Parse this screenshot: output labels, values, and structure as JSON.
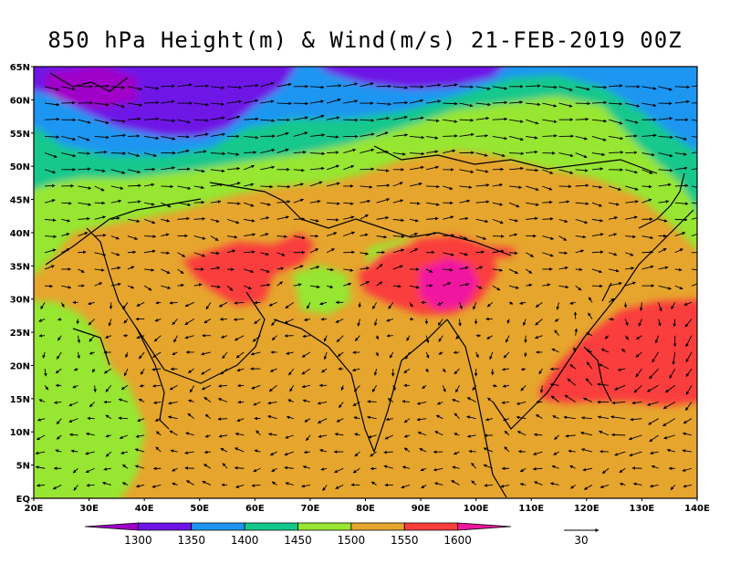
{
  "title": "850 hPa Height(m) & Wind(m/s) 21-FEB-2019 00Z",
  "map": {
    "lat_labels": [
      "65N",
      "60N",
      "55N",
      "50N",
      "45N",
      "40N",
      "35N",
      "30N",
      "25N",
      "20N",
      "15N",
      "10N",
      "5N",
      "EQ"
    ],
    "lon_labels": [
      "20E",
      "30E",
      "40E",
      "50E",
      "60E",
      "70E",
      "80E",
      "90E",
      "100E",
      "110E",
      "120E",
      "130E",
      "140E"
    ],
    "lon_range": [
      20,
      140
    ],
    "lat_range": [
      0,
      65
    ]
  },
  "colorbar": {
    "labels": [
      "1300",
      "1350",
      "1400",
      "1450",
      "1500",
      "1550",
      "1600"
    ],
    "colors": [
      "#a000c8",
      "#6e14e6",
      "#1e96f0",
      "#14c88c",
      "#96e632",
      "#e6a52d",
      "#fa3c3c",
      "#f014a0"
    ]
  },
  "wind_reference": {
    "label": "30"
  }
}
